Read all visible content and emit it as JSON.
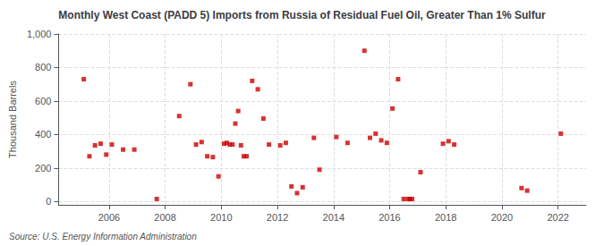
{
  "chart_data": {
    "type": "scatter",
    "title": "Monthly West Coast (PADD 5) Imports from Russia of Residual Fuel Oil, Greater Than 1% Sulfur",
    "ylabel": "Thousand Barrels",
    "annotations": [
      "Source: U.S. Energy Information Administration"
    ],
    "color": "#cc0000",
    "marker": "square",
    "grid": true,
    "xlim": [
      2004.2,
      2023.0
    ],
    "ylim": [
      -20,
      1000
    ],
    "xticks": [
      2006,
      2008,
      2010,
      2012,
      2014,
      2016,
      2018,
      2020,
      2022
    ],
    "yticks": [
      0,
      200,
      400,
      600,
      800,
      {
        "value": 1000,
        "label": "1,000"
      }
    ],
    "x": [
      2005.1,
      2005.3,
      2005.5,
      2005.7,
      2005.9,
      2006.1,
      2006.5,
      2006.9,
      2007.7,
      2008.5,
      2008.9,
      2009.1,
      2009.3,
      2009.5,
      2009.7,
      2009.9,
      2010.1,
      2010.2,
      2010.3,
      2010.4,
      2010.5,
      2010.6,
      2010.7,
      2010.8,
      2010.9,
      2011.1,
      2011.3,
      2011.5,
      2011.7,
      2012.1,
      2012.3,
      2012.5,
      2012.7,
      2012.9,
      2013.3,
      2013.5,
      2014.1,
      2014.5,
      2015.1,
      2015.3,
      2015.5,
      2015.7,
      2015.9,
      2016.1,
      2016.3,
      2016.5,
      2016.65,
      2016.72,
      2016.8,
      2017.1,
      2017.9,
      2018.1,
      2018.3,
      2020.7,
      2020.9,
      2022.1
    ],
    "values": [
      730,
      270,
      335,
      345,
      280,
      340,
      310,
      310,
      15,
      510,
      700,
      340,
      355,
      270,
      265,
      150,
      345,
      350,
      340,
      340,
      465,
      540,
      335,
      270,
      270,
      720,
      670,
      495,
      340,
      335,
      350,
      90,
      50,
      85,
      380,
      190,
      385,
      350,
      900,
      380,
      405,
      365,
      350,
      555,
      730,
      15,
      15,
      15,
      15,
      175,
      345,
      360,
      340,
      80,
      65,
      405
    ]
  }
}
